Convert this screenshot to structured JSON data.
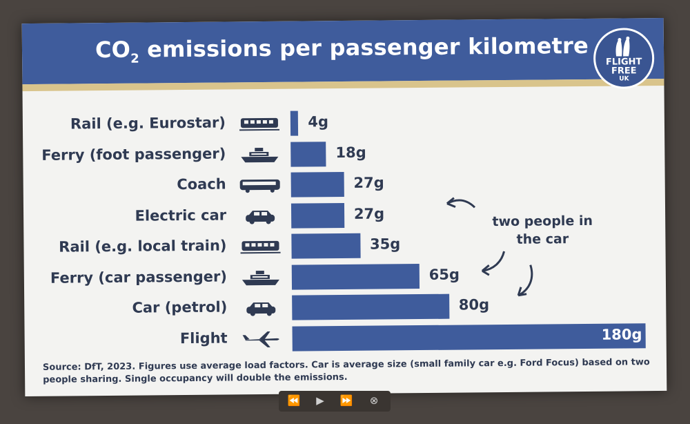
{
  "slide": {
    "title_prefix": "CO",
    "title_subscript": "2",
    "title_rest": " emissions per passenger kilometre",
    "logo": {
      "line1": "FLIGHT",
      "line2": "FREE",
      "line3": "UK"
    },
    "annotation": "two people in the car",
    "footnote": "Source: DfT, 2023. Figures use average load factors. Car is average size (small family car e.g. Ford Focus) based on two people sharing. Single occupancy will double the emissions."
  },
  "colors": {
    "header": "#3f5c9c",
    "bar": "#3f5c9c",
    "accent_line": "#d9c48c",
    "text": "#2f3a52"
  },
  "chart_data": {
    "type": "bar",
    "orientation": "horizontal",
    "title": "CO2 emissions per passenger kilometre",
    "unit": "g",
    "categories": [
      "Rail (e.g. Eurostar)",
      "Ferry (foot passenger)",
      "Coach",
      "Electric car",
      "Rail (e.g. local train)",
      "Ferry (car passenger)",
      "Car (petrol)",
      "Flight"
    ],
    "values": [
      4,
      18,
      27,
      27,
      35,
      65,
      80,
      180
    ],
    "labels": [
      "4g",
      "18g",
      "27g",
      "27g",
      "35g",
      "65g",
      "80g",
      "180g"
    ],
    "icons": [
      "train-icon",
      "ship-icon",
      "bus-icon",
      "car-icon",
      "train-icon",
      "ship-icon",
      "car-icon",
      "plane-icon"
    ],
    "xlim": [
      0,
      180
    ],
    "grid": false,
    "legend": "none"
  },
  "player_controls": {
    "previous": "⏪",
    "play": "▶",
    "next": "⏩",
    "close": "⊗"
  }
}
